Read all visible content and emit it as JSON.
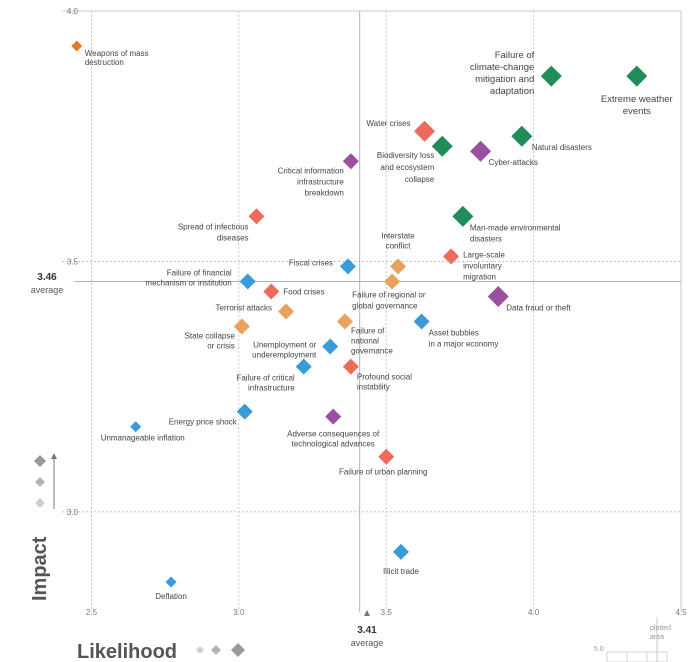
{
  "chart_data": {
    "type": "scatter",
    "xlabel": "Likelihood",
    "ylabel": "Impact",
    "xlim": [
      2.4,
      4.5
    ],
    "ylim": [
      2.8,
      4.0
    ],
    "x_ticks": [
      "2.5",
      "3.0",
      "3.5",
      "4.0",
      "4.5"
    ],
    "y_ticks": [
      "3.0",
      "3.5",
      "4.0"
    ],
    "x_average": {
      "value": "3.41",
      "label": "average"
    },
    "y_average": {
      "value": "3.46",
      "label": "average"
    },
    "plotted_area_note": {
      "line1": "plotted",
      "line2": "area",
      "scale_value": "5.0"
    },
    "colors": {
      "economic": "#3b9bd8",
      "environmental": "#1f8c5a",
      "geopolitical": "#e8a25e",
      "societal": "#ee6b5b",
      "technological": "#9a4f9f",
      "weapons": "#e07b2c"
    },
    "points": [
      {
        "name": "Weapons of mass destruction",
        "lines": [
          "Weapons of mass",
          "destruction"
        ],
        "x": 2.45,
        "y": 3.93,
        "category": "weapons",
        "size": "s"
      },
      {
        "name": "Extreme weather events",
        "lines": [
          "Extreme weather",
          "events"
        ],
        "x": 4.35,
        "y": 3.87,
        "category": "environmental",
        "size": "l"
      },
      {
        "name": "Failure of climate-change mitigation and adaptation",
        "lines": [
          "Failure of",
          "climate-change",
          "mitigation and",
          "adaptation"
        ],
        "x": 4.06,
        "y": 3.87,
        "category": "environmental",
        "size": "l"
      },
      {
        "name": "Natural disasters",
        "lines": [
          "Natural disasters"
        ],
        "x": 3.96,
        "y": 3.75,
        "category": "environmental",
        "size": "l"
      },
      {
        "name": "Water crises",
        "lines": [
          "Water crises"
        ],
        "x": 3.63,
        "y": 3.76,
        "category": "societal",
        "size": "l"
      },
      {
        "name": "Biodiversity loss and ecosystem collapse",
        "lines": [
          "Biodiversity loss",
          "and ecosystem",
          "collapse"
        ],
        "x": 3.69,
        "y": 3.73,
        "category": "environmental",
        "size": "l"
      },
      {
        "name": "Cyber-attacks",
        "lines": [
          "Cyber-attacks"
        ],
        "x": 3.82,
        "y": 3.72,
        "category": "technological",
        "size": "l"
      },
      {
        "name": "Critical information infrastructure breakdown",
        "lines": [
          "Critical information",
          "infrastructure",
          "breakdown"
        ],
        "x": 3.38,
        "y": 3.7,
        "category": "technological",
        "size": "m"
      },
      {
        "name": "Spread of infectious diseases",
        "lines": [
          "Spread of infectious",
          "diseases"
        ],
        "x": 3.06,
        "y": 3.59,
        "category": "societal",
        "size": "m"
      },
      {
        "name": "Man-made environmental disasters",
        "lines": [
          "Man-made environmental",
          "disasters"
        ],
        "x": 3.76,
        "y": 3.59,
        "category": "environmental",
        "size": "l"
      },
      {
        "name": "Interstate conflict",
        "lines": [
          "Interstate",
          "conflict"
        ],
        "x": 3.54,
        "y": 3.49,
        "category": "geopolitical",
        "size": "m"
      },
      {
        "name": "Large-scale involuntary migration",
        "lines": [
          "Large-scale",
          "involuntary",
          "migration"
        ],
        "x": 3.72,
        "y": 3.51,
        "category": "societal",
        "size": "m"
      },
      {
        "name": "Fiscal crises",
        "lines": [
          "Fiscal crises"
        ],
        "x": 3.37,
        "y": 3.49,
        "category": "economic",
        "size": "m"
      },
      {
        "name": "Failure of financial mechanism or institution",
        "lines": [
          "Failure of financial",
          "mechanism or institution"
        ],
        "x": 3.03,
        "y": 3.46,
        "category": "economic",
        "size": "m"
      },
      {
        "name": "Food crises",
        "lines": [
          "Food crises"
        ],
        "x": 3.11,
        "y": 3.44,
        "category": "societal",
        "size": "m"
      },
      {
        "name": "Failure of regional or global governance",
        "lines": [
          "Failure of regional or",
          "global governance"
        ],
        "x": 3.52,
        "y": 3.46,
        "category": "geopolitical",
        "size": "m"
      },
      {
        "name": "Data fraud or theft",
        "lines": [
          "Data fraud or theft"
        ],
        "x": 3.88,
        "y": 3.43,
        "category": "technological",
        "size": "l"
      },
      {
        "name": "Terrorist attacks",
        "lines": [
          "Terrorist attacks"
        ],
        "x": 3.16,
        "y": 3.4,
        "category": "geopolitical",
        "size": "m"
      },
      {
        "name": "State collapse or crisis",
        "lines": [
          "State collapse",
          "or crisis"
        ],
        "x": 3.01,
        "y": 3.37,
        "category": "geopolitical",
        "size": "m"
      },
      {
        "name": "Failure of national governance",
        "lines": [
          "Failure of",
          "national",
          "governance"
        ],
        "x": 3.36,
        "y": 3.38,
        "category": "geopolitical",
        "size": "m"
      },
      {
        "name": "Asset bubbles in a major economy",
        "lines": [
          "Asset bubbles",
          "in a major economy"
        ],
        "x": 3.62,
        "y": 3.38,
        "category": "economic",
        "size": "m"
      },
      {
        "name": "Unemployment or underemployment",
        "lines": [
          "Unemployment or",
          "underemployment"
        ],
        "x": 3.31,
        "y": 3.33,
        "category": "economic",
        "size": "m"
      },
      {
        "name": "Failure of critical infrastructure",
        "lines": [
          "Failure of critical",
          "infrastructure"
        ],
        "x": 3.22,
        "y": 3.29,
        "category": "economic",
        "size": "m"
      },
      {
        "name": "Profound social instability",
        "lines": [
          "Profound social",
          "instability"
        ],
        "x": 3.38,
        "y": 3.29,
        "category": "societal",
        "size": "m"
      },
      {
        "name": "Energy price shock",
        "lines": [
          "Energy price shock"
        ],
        "x": 3.02,
        "y": 3.2,
        "category": "economic",
        "size": "m"
      },
      {
        "name": "Adverse consequences of technological advances",
        "lines": [
          "Adverse consequences of",
          "technological advances"
        ],
        "x": 3.32,
        "y": 3.19,
        "category": "technological",
        "size": "m"
      },
      {
        "name": "Unmanageable inflation",
        "lines": [
          "Unmanageable inflation"
        ],
        "x": 2.65,
        "y": 3.17,
        "category": "economic",
        "size": "s"
      },
      {
        "name": "Failure of urban planning",
        "lines": [
          "Failure of urban planning"
        ],
        "x": 3.5,
        "y": 3.11,
        "category": "societal",
        "size": "m"
      },
      {
        "name": "Illicit trade",
        "lines": [
          "Illicit trade"
        ],
        "x": 3.55,
        "y": 2.92,
        "category": "economic",
        "size": "m"
      },
      {
        "name": "Deflation",
        "lines": [
          "Deflation"
        ],
        "x": 2.77,
        "y": 2.86,
        "category": "economic",
        "size": "s"
      }
    ]
  }
}
